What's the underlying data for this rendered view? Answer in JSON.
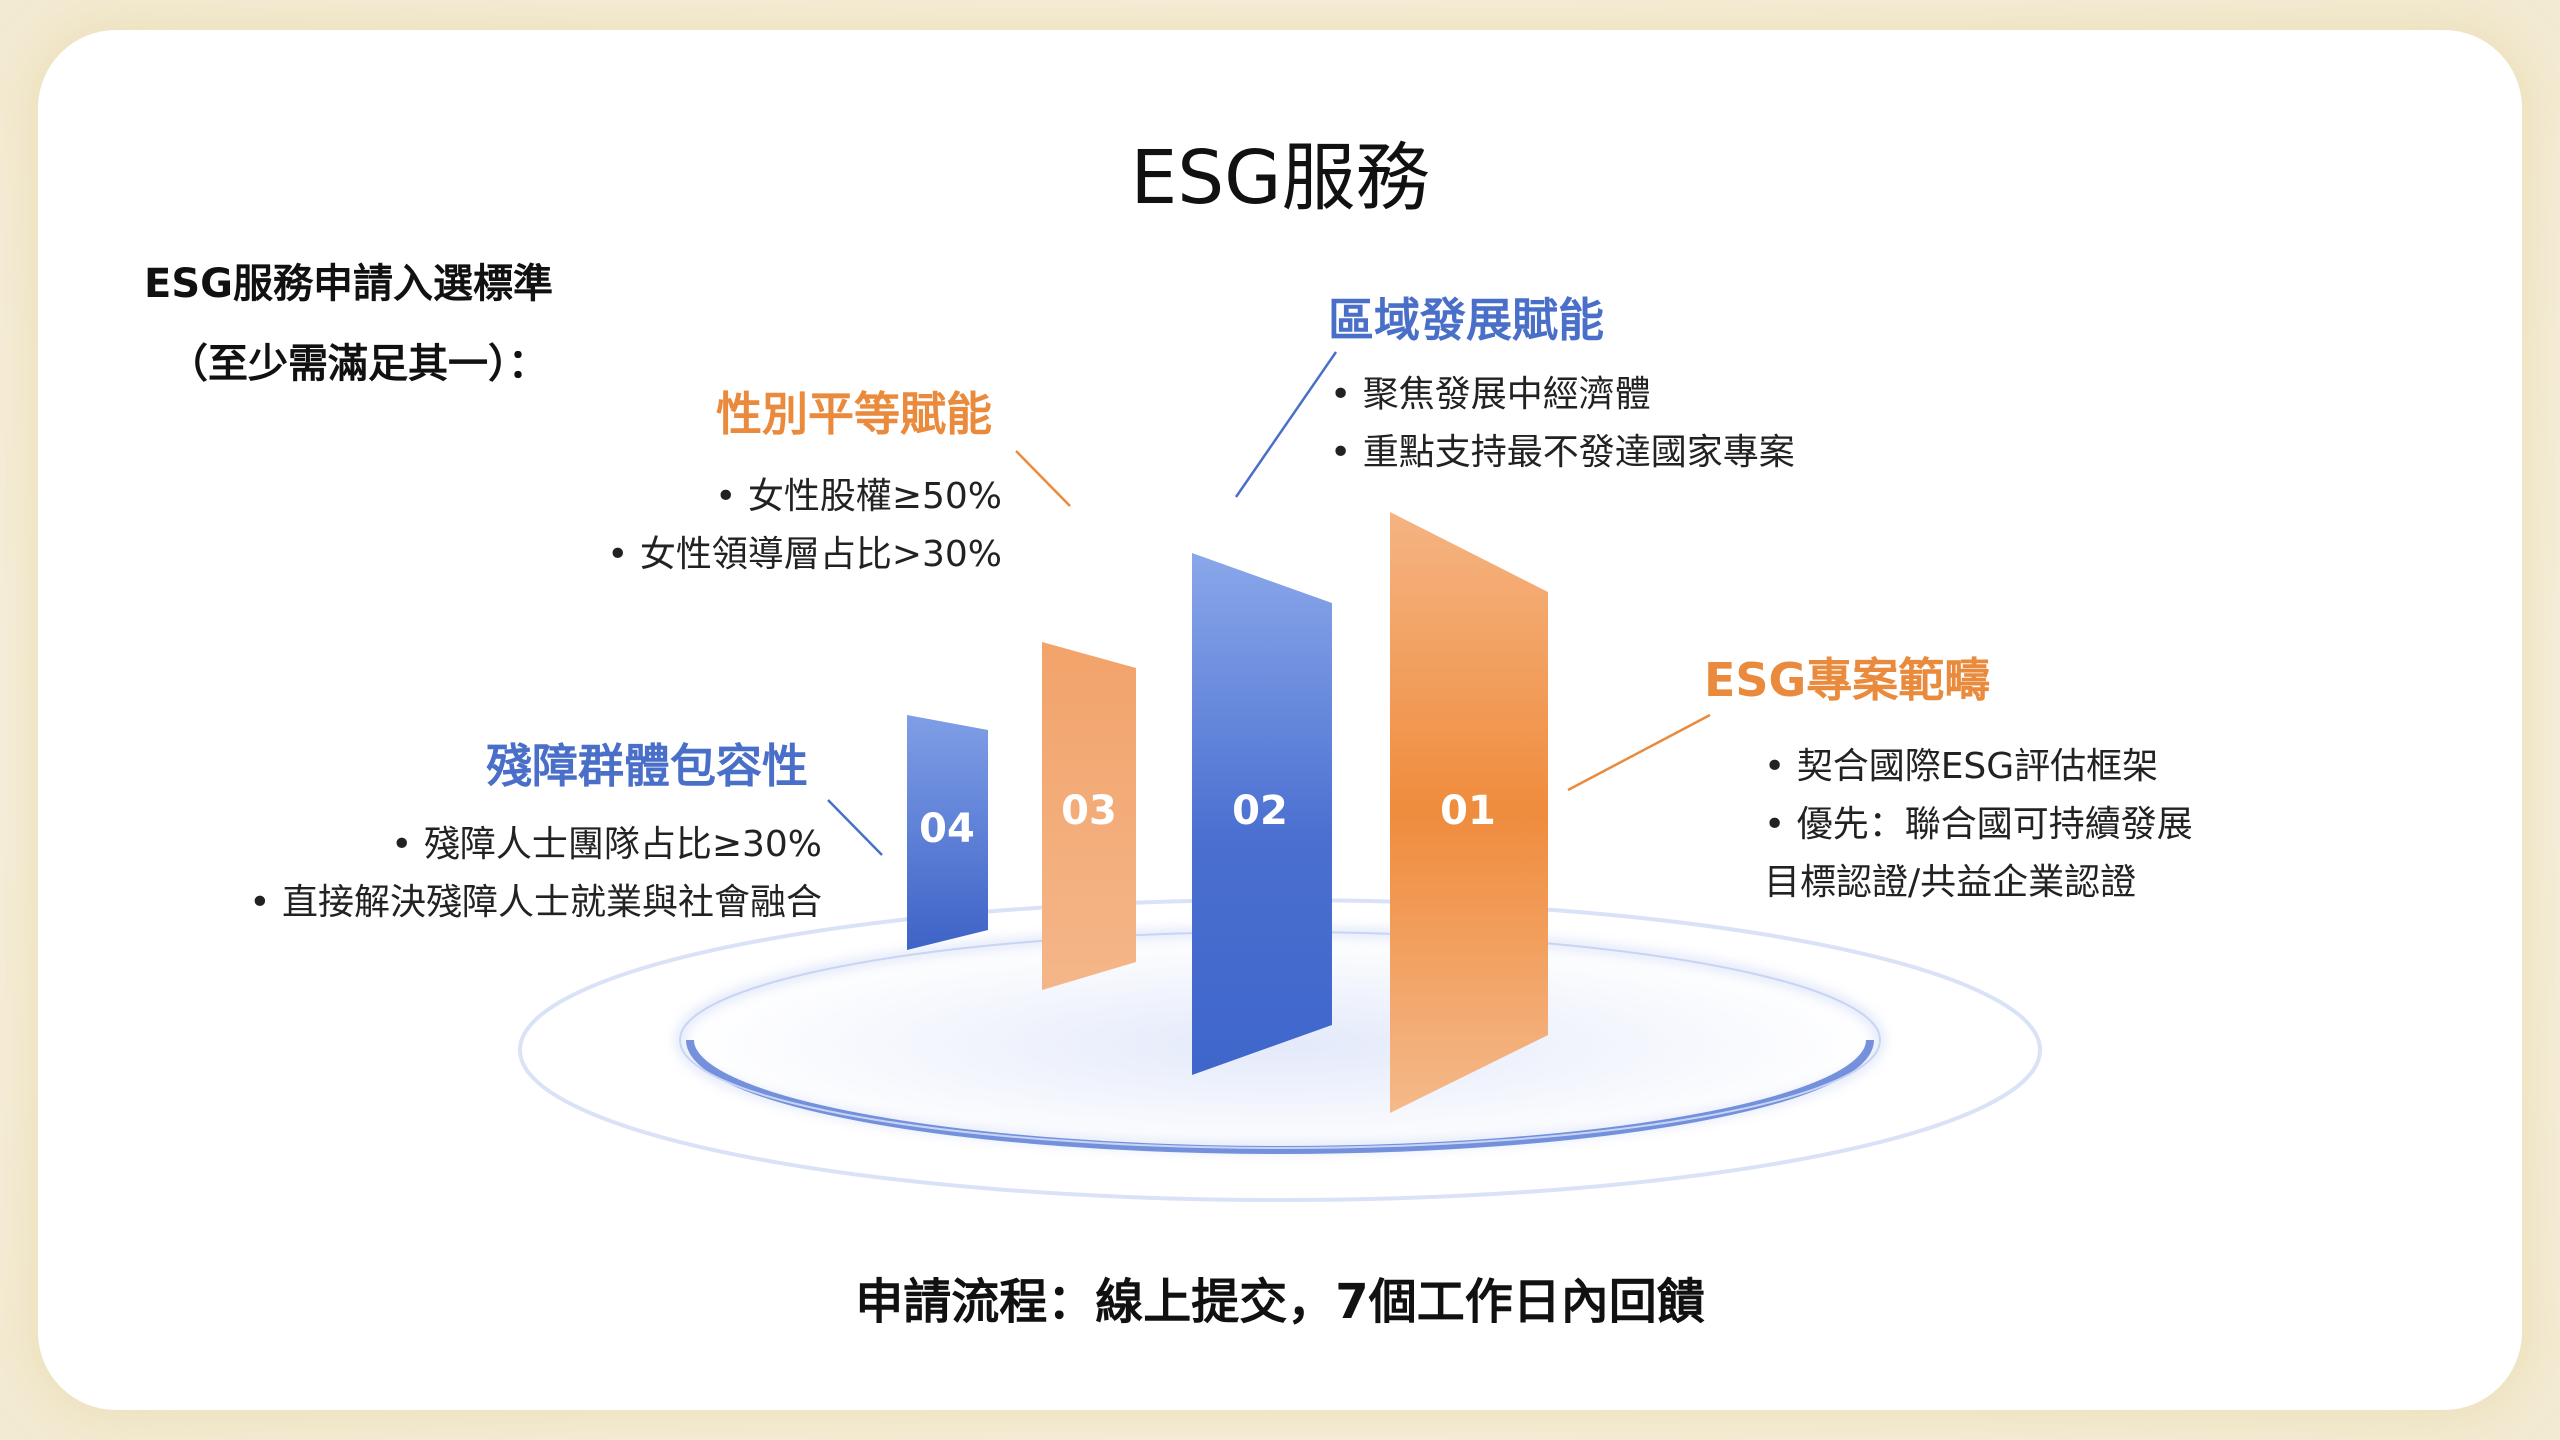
{
  "title": "ESG服務",
  "criteria": {
    "line1": "ESG服務申請入選標準",
    "line2": "（至少需滿足其一）："
  },
  "sections": {
    "gender": {
      "title": "性別平等賦能",
      "bullets": [
        "女性股權≥50%",
        "女性領導層占比>30%"
      ]
    },
    "region": {
      "title": "區域發展賦能",
      "bullets": [
        "聚焦發展中經濟體",
        "重點支持最不發達國家專案"
      ]
    },
    "scope": {
      "title": "ESG專案範疇",
      "bullets": [
        "契合國際ESG評估框架",
        "優先：聯合國可持續發展"
      ],
      "continuation": "目標認證/共益企業認證"
    },
    "disability": {
      "title": "殘障群體包容性",
      "bullets": [
        "殘障人士團隊占比≥30%",
        "直接解決殘障人士就業與社會融合"
      ]
    }
  },
  "bars": [
    {
      "label": "04",
      "color": "blue"
    },
    {
      "label": "03",
      "color": "orange"
    },
    {
      "label": "02",
      "color": "blue"
    },
    {
      "label": "01",
      "color": "orange"
    }
  ],
  "colors": {
    "orange": "#ea8a3c",
    "blue": "#4a6fc8",
    "card_border": "#efe3bf"
  },
  "footer": "申請流程：線上提交，7個工作日內回饋"
}
